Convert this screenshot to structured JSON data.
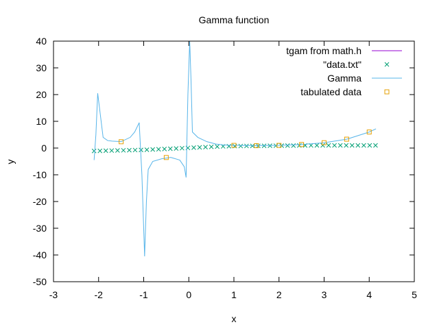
{
  "chart_data": {
    "type": "line",
    "title": "Gamma function",
    "xlabel": "x",
    "ylabel": "y",
    "xlim": [
      -3,
      5
    ],
    "ylim": [
      -50,
      40
    ],
    "xticks": [
      -3,
      -2,
      -1,
      0,
      1,
      2,
      3,
      4,
      5
    ],
    "yticks": [
      -50,
      -40,
      -30,
      -20,
      -10,
      0,
      10,
      20,
      30,
      40
    ],
    "grid": false,
    "legend_position": "top-right",
    "series": [
      {
        "name": "tgam from math.h",
        "style": "line",
        "color": "#9400d3",
        "x": [],
        "y": []
      },
      {
        "name": "\"data.txt\"",
        "style": "points-x",
        "color": "#009e73",
        "x": [
          -2.1,
          -1.97,
          -1.84,
          -1.71,
          -1.58,
          -1.45,
          -1.32,
          -1.19,
          -1.06,
          -0.93,
          -0.8,
          -0.67,
          -0.54,
          -0.41,
          -0.28,
          -0.15,
          -0.02,
          0.11,
          0.24,
          0.37,
          0.5,
          0.63,
          0.76,
          0.89,
          1.02,
          1.15,
          1.28,
          1.41,
          1.54,
          1.67,
          1.8,
          1.93,
          2.06,
          2.19,
          2.32,
          2.45,
          2.58,
          2.71,
          2.84,
          2.97,
          3.1,
          3.23,
          3.36,
          3.49,
          3.62,
          3.75,
          3.88,
          4.01,
          4.14
        ],
        "y": [
          -1.1,
          -1.05,
          -1.0,
          -0.95,
          -0.9,
          -0.85,
          -0.8,
          -0.75,
          -0.7,
          -0.65,
          -0.55,
          -0.45,
          -0.35,
          -0.25,
          -0.15,
          -0.05,
          0.05,
          0.15,
          0.25,
          0.35,
          0.45,
          0.55,
          0.62,
          0.68,
          0.72,
          0.75,
          0.78,
          0.8,
          0.82,
          0.84,
          0.86,
          0.88,
          0.9,
          0.92,
          0.94,
          0.96,
          0.97,
          0.98,
          0.99,
          1.0,
          1.0,
          1.0,
          1.0,
          1.0,
          1.0,
          1.0,
          1.0,
          1.0,
          1.0
        ]
      },
      {
        "name": "Gamma",
        "style": "line",
        "color": "#56b4e9",
        "x": [
          -2.1,
          -2.06,
          -2.02,
          -1.98,
          -1.9,
          -1.8,
          -1.7,
          -1.5,
          -1.3,
          -1.2,
          -1.1,
          -1.04,
          -0.98,
          -0.94,
          -0.9,
          -0.8,
          -0.6,
          -0.4,
          -0.2,
          -0.1,
          -0.06,
          -0.02,
          0.02,
          0.05,
          0.08,
          0.2,
          0.4,
          0.6,
          0.8,
          1.0,
          1.5,
          2.0,
          2.5,
          3.0,
          3.5,
          4.0,
          4.15
        ],
        "y": [
          -4.5,
          5,
          20.5,
          15,
          4,
          2.8,
          2.6,
          2.4,
          4,
          6,
          9.5,
          -10,
          -40.5,
          -20,
          -8,
          -5,
          -4,
          -3.5,
          -4.5,
          -7,
          -11,
          20,
          40,
          25,
          6,
          4,
          2.4,
          1.5,
          1.1,
          1.0,
          0.9,
          1.0,
          1.3,
          2.0,
          3.3,
          6.0,
          7.2
        ]
      },
      {
        "name": "tabulated data",
        "style": "points-square",
        "color": "#e69f00",
        "x": [
          -1.5,
          -0.5,
          1.0,
          1.5,
          2.0,
          2.5,
          3.0,
          3.5,
          4.0
        ],
        "y": [
          2.36,
          -3.54,
          1.0,
          0.89,
          1.0,
          1.33,
          2.0,
          3.32,
          6.0
        ]
      }
    ]
  }
}
